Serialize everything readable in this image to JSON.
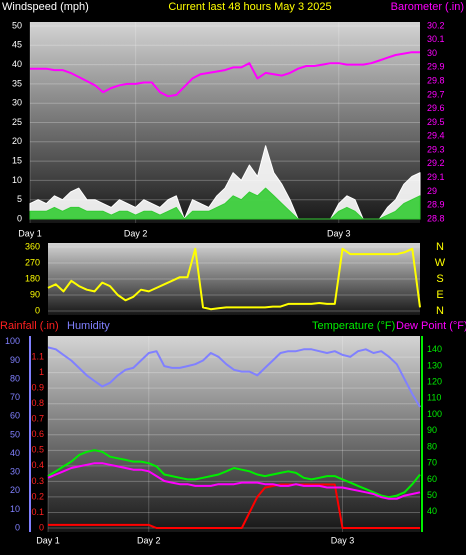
{
  "chart_data": [
    {
      "type": "line",
      "title": "Current last 48 hours May 3 2025",
      "categories": [
        "Day 1",
        null,
        null,
        null,
        null,
        null,
        null,
        null,
        null,
        null,
        null,
        null,
        null,
        "Day 2",
        null,
        null,
        null,
        null,
        null,
        null,
        null,
        null,
        null,
        null,
        null,
        null,
        null,
        null,
        null,
        null,
        null,
        null,
        null,
        null,
        null,
        null,
        null,
        null,
        "Day 3",
        null,
        null,
        null,
        null,
        null,
        null,
        null,
        null,
        null,
        null
      ],
      "ylim": [
        0,
        50
      ],
      "yticks": [
        0,
        5,
        10,
        15,
        20,
        25,
        30,
        35,
        40,
        45,
        50
      ],
      "y2lim": [
        28.8,
        30.2
      ],
      "y2ticks": [
        28.8,
        28.9,
        29,
        29.1,
        29.2,
        29.3,
        29.4,
        29.5,
        29.6,
        29.7,
        29.8,
        29.9,
        30,
        30.1,
        30.2
      ],
      "grid": true,
      "series": [
        {
          "name": "Windspeed (mph)",
          "color": "#ffffff",
          "fill": true,
          "values": [
            4,
            5,
            4,
            6,
            5,
            7,
            8,
            5,
            5,
            4,
            3,
            5,
            4,
            3,
            5,
            4,
            3,
            5,
            6,
            0,
            5,
            4,
            3,
            6,
            8,
            12,
            10,
            14,
            11,
            19,
            12,
            9,
            5,
            0,
            0,
            0,
            0,
            0,
            4,
            6,
            5,
            0,
            0,
            0,
            3,
            5,
            9,
            11,
            12
          ]
        },
        {
          "color": "#33cc33",
          "fill": true,
          "values": [
            2,
            2,
            2,
            3,
            2,
            3,
            3,
            2,
            2,
            2,
            1,
            2,
            2,
            1,
            2,
            2,
            1,
            2,
            3,
            0,
            2,
            2,
            2,
            3,
            4,
            6,
            5,
            7,
            6,
            8,
            6,
            4,
            2,
            0,
            0,
            0,
            0,
            0,
            2,
            3,
            2,
            0,
            0,
            0,
            1,
            2,
            4,
            5,
            6
          ]
        },
        {
          "name": "Barometer (.in)",
          "color": "#ff00ff",
          "axis": "y2",
          "values": [
            29.89,
            29.89,
            29.89,
            29.88,
            29.88,
            29.86,
            29.83,
            29.8,
            29.77,
            29.72,
            29.75,
            29.77,
            29.78,
            29.78,
            29.79,
            29.79,
            29.72,
            29.69,
            29.7,
            29.76,
            29.82,
            29.85,
            29.86,
            29.87,
            29.88,
            29.9,
            29.9,
            29.93,
            29.82,
            29.86,
            29.85,
            29.84,
            29.86,
            29.89,
            29.91,
            29.91,
            29.92,
            29.93,
            29.93,
            29.92,
            29.92,
            29.92,
            29.93,
            29.95,
            29.97,
            29.99,
            30,
            30.01,
            30.01
          ]
        }
      ]
    },
    {
      "type": "line",
      "ylim": [
        0,
        360
      ],
      "yticks": [
        0,
        90,
        180,
        270,
        360
      ],
      "y2lim": [
        0,
        360
      ],
      "y2ticks": [
        {
          "value": 360,
          "label": "N"
        },
        {
          "value": 270,
          "label": "W"
        },
        {
          "value": 180,
          "label": "S"
        },
        {
          "value": 90,
          "label": "E"
        },
        {
          "value": 0,
          "label": "N"
        }
      ],
      "grid": true,
      "series": [
        {
          "color": "#ffff00",
          "values": [
            130,
            150,
            110,
            170,
            140,
            120,
            110,
            160,
            140,
            90,
            60,
            80,
            120,
            110,
            130,
            150,
            170,
            190,
            190,
            350,
            20,
            10,
            15,
            20,
            20,
            20,
            20,
            20,
            20,
            25,
            25,
            40,
            40,
            40,
            40,
            45,
            40,
            40,
            350,
            320,
            320,
            320,
            320,
            320,
            320,
            320,
            330,
            350,
            20
          ]
        }
      ]
    },
    {
      "type": "line",
      "categories": [
        "Day 1",
        null,
        null,
        null,
        null,
        null,
        null,
        null,
        null,
        null,
        null,
        null,
        null,
        "Day 2",
        null,
        null,
        null,
        null,
        null,
        null,
        null,
        null,
        null,
        null,
        null,
        null,
        null,
        null,
        null,
        null,
        null,
        null,
        null,
        null,
        null,
        null,
        null,
        null,
        "Day 3",
        null,
        null,
        null,
        null,
        null,
        null,
        null,
        null,
        null,
        null
      ],
      "ylim": [
        0,
        1.21
      ],
      "yticks": [
        0,
        0.1,
        0.2,
        0.3,
        0.4,
        0.5,
        0.6,
        0.7,
        0.8,
        0.9,
        1,
        1.1
      ],
      "y3lim": [
        0,
        101
      ],
      "y3ticks": [
        0,
        10,
        20,
        30,
        40,
        50,
        60,
        70,
        80,
        90,
        100
      ],
      "y2lim": [
        30,
        146
      ],
      "y2ticks": [
        40,
        50,
        60,
        70,
        80,
        90,
        100,
        110,
        120,
        130,
        140
      ],
      "grid": true,
      "series": [
        {
          "name": "Rainfall (.in)",
          "color": "#ff0000",
          "values": [
            0.02,
            0.02,
            0.02,
            0.02,
            0.02,
            0.02,
            0.02,
            0.02,
            0.02,
            0.02,
            0.02,
            0.02,
            0.02,
            0.02,
            0,
            0,
            0,
            0,
            0,
            0,
            0,
            0,
            0,
            0,
            0,
            0,
            0.1,
            0.2,
            0.26,
            0.27,
            0.28,
            0.28,
            0.28,
            0.28,
            0.28,
            0.28,
            0.28,
            0.28,
            0,
            0,
            0,
            0,
            0,
            0,
            0,
            0,
            0,
            0,
            0
          ]
        },
        {
          "name": "Humidity",
          "color": "#8080ff",
          "axis": "y3",
          "values": [
            97,
            96,
            93,
            90,
            86,
            82,
            79,
            76,
            78,
            82,
            85,
            86,
            90,
            94,
            95,
            87,
            86,
            86,
            87,
            88,
            90,
            94,
            92,
            88,
            85,
            84,
            84,
            82,
            86,
            90,
            94,
            95,
            95,
            96,
            96,
            95,
            94,
            95,
            93,
            92,
            95,
            96,
            94,
            95,
            92,
            88,
            80,
            72,
            65
          ]
        },
        {
          "name": "Temperature (°F)",
          "color": "#00ee00",
          "axis": "y2",
          "values": [
            62,
            65,
            68,
            71,
            75,
            77,
            78,
            77,
            74,
            73,
            72,
            71,
            71,
            70,
            68,
            63,
            62,
            61,
            60,
            60,
            61,
            62,
            63,
            65,
            67,
            66,
            65,
            63,
            62,
            63,
            64,
            65,
            64,
            61,
            60,
            61,
            62,
            62,
            60,
            58,
            56,
            54,
            52,
            50,
            49,
            50,
            52,
            57,
            63
          ]
        },
        {
          "name": "Dew Point (°F)",
          "color": "#ff00ff",
          "axis": "y2",
          "values": [
            61,
            63,
            65,
            67,
            68,
            69,
            70,
            70,
            69,
            68,
            67,
            66,
            66,
            65,
            62,
            59,
            58,
            57,
            57,
            56,
            56,
            56,
            57,
            57,
            57,
            58,
            58,
            58,
            57,
            57,
            56,
            56,
            57,
            56,
            56,
            56,
            55,
            55,
            55,
            54,
            53,
            52,
            51,
            49,
            48,
            48,
            50,
            51,
            52
          ]
        }
      ]
    }
  ]
}
